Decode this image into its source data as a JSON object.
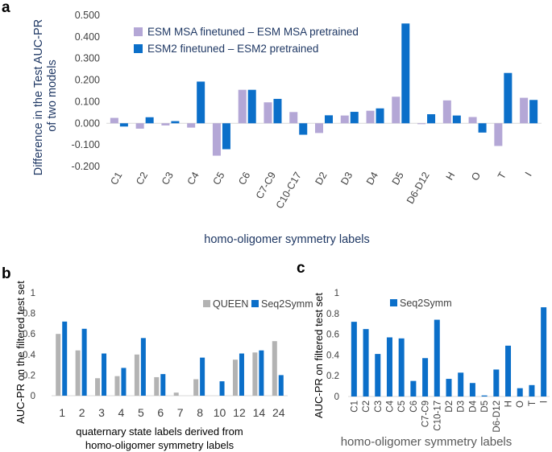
{
  "colors": {
    "msa": "#b4a7d6",
    "esm2": "#0b6fc9",
    "queen": "#b3b3b3",
    "seq2symm": "#0b6fc9"
  },
  "panel_labels": {
    "a": "a",
    "b": "b",
    "c": "c"
  },
  "chart_data": [
    {
      "id": "a",
      "type": "bar",
      "categories": [
        "C1",
        "C2",
        "C3",
        "C4",
        "C5",
        "C6",
        "C7-C9",
        "C10-C17",
        "D2",
        "D3",
        "D4",
        "D5",
        "D6-D12",
        "H",
        "O",
        "T",
        "I"
      ],
      "series": [
        {
          "name": "ESM MSA finetuned – ESM MSA pretrained",
          "values": [
            0.025,
            -0.025,
            -0.01,
            -0.02,
            -0.15,
            0.155,
            0.097,
            0.052,
            -0.045,
            0.036,
            0.058,
            0.123,
            -0.004,
            0.106,
            0.029,
            -0.105,
            0.118
          ]
        },
        {
          "name": "ESM2 finetuned – ESM2 pretrained",
          "values": [
            -0.015,
            0.028,
            0.01,
            0.193,
            -0.12,
            0.155,
            0.113,
            -0.053,
            0.037,
            0.053,
            0.069,
            0.462,
            0.042,
            0.036,
            -0.043,
            0.233,
            0.108
          ]
        }
      ],
      "yticks": [
        "0.500",
        "0.400",
        "0.300",
        "0.200",
        "0.100",
        "0.000",
        "-0.100",
        "-0.200"
      ],
      "ylim": [
        -0.2,
        0.5
      ],
      "xlabel": "homo-oligomer symmetry labels",
      "ylabel_lines": [
        "Difference in the Test AUC-PR",
        "of two models"
      ]
    },
    {
      "id": "b",
      "type": "bar",
      "categories": [
        "1",
        "2",
        "3",
        "4",
        "5",
        "6",
        "7",
        "8",
        "10",
        "12",
        "14",
        "24"
      ],
      "series": [
        {
          "name": "QUEEN",
          "values": [
            0.6,
            0.44,
            0.17,
            0.19,
            0.4,
            0.18,
            0.03,
            0.16,
            0.0,
            0.35,
            0.42,
            0.53
          ]
        },
        {
          "name": "Seq2Symm",
          "values": [
            0.72,
            0.65,
            0.41,
            0.27,
            0.56,
            0.21,
            0.0,
            0.37,
            0.14,
            0.41,
            0.44,
            0.2
          ]
        }
      ],
      "yticks": [
        "1",
        "0.8",
        "0.6",
        "0.4",
        "0.2",
        "0"
      ],
      "ylim": [
        0,
        1
      ],
      "xlabel_lines": [
        "quaternary state labels derived from",
        "homo-oligomer symmetry labels"
      ],
      "ylabel": "AUC-PR on the filtered test set"
    },
    {
      "id": "c",
      "type": "bar",
      "categories": [
        "C1",
        "C2",
        "C3",
        "C4",
        "C5",
        "C6",
        "C7-C9",
        "C10-17",
        "D2",
        "D3",
        "D4",
        "D5",
        "D6-D12",
        "H",
        "O",
        "T",
        "I"
      ],
      "series": [
        {
          "name": "Seq2Symm",
          "values": [
            0.72,
            0.65,
            0.41,
            0.57,
            0.56,
            0.15,
            0.37,
            0.74,
            0.17,
            0.23,
            0.13,
            0.01,
            0.26,
            0.49,
            0.08,
            0.11,
            0.86
          ]
        }
      ],
      "yticks": [
        "1",
        "0.8",
        "0.6",
        "0.4",
        "0.2",
        "0"
      ],
      "ylim": [
        0,
        1
      ],
      "xlabel": "homo-oligomer symmetry labels",
      "ylabel": "AUC-PR on filtered test set"
    }
  ]
}
